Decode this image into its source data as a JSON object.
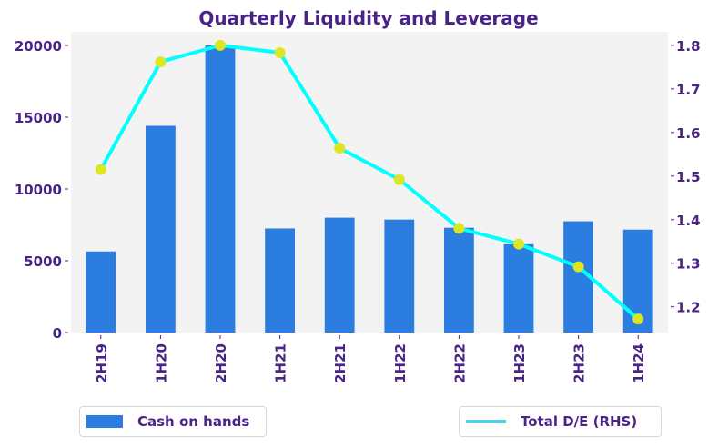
{
  "chart_data": {
    "type": "bar",
    "title": "Quarterly Liquidity and Leverage",
    "categories": [
      "2H19",
      "1H20",
      "2H20",
      "1H21",
      "2H21",
      "1H22",
      "2H22",
      "1H23",
      "2H23",
      "1H24"
    ],
    "series": [
      {
        "name": "Cash on hands",
        "type": "bar",
        "axis": "left",
        "color": "#2b7de0",
        "values": [
          5650,
          14400,
          20000,
          7250,
          8000,
          7870,
          7300,
          6150,
          7750,
          7170
        ]
      },
      {
        "name": "Total D/E (RHS)",
        "type": "line",
        "axis": "right",
        "color": "#00ffff",
        "marker_color": "#dde622",
        "legend_color": "#54d0e0",
        "values": [
          1.515,
          1.762,
          1.8,
          1.783,
          1.564,
          1.492,
          1.38,
          1.344,
          1.292,
          1.172
        ]
      }
    ],
    "xlabel": "",
    "ylabel": "",
    "y_left": {
      "lim": [
        0,
        20950
      ],
      "ticks": [
        0,
        5000,
        10000,
        15000,
        20000
      ],
      "tick_labels": [
        "0",
        "5000",
        "10000",
        "15000",
        "20000"
      ]
    },
    "y_right": {
      "lim": [
        1.141,
        1.831
      ],
      "ticks": [
        1.2,
        1.3,
        1.4,
        1.5,
        1.6,
        1.7,
        1.8
      ],
      "tick_labels": [
        "1.2",
        "1.3",
        "1.4",
        "1.5",
        "1.6",
        "1.7",
        "1.8"
      ]
    },
    "grid": false,
    "plot_background": "#f3f3f3",
    "text_color": "#4a2386",
    "legend": [
      {
        "label": "Cash on hands",
        "kind": "bar",
        "placement": "bottom-left"
      },
      {
        "label": "Total D/E (RHS)",
        "kind": "line",
        "placement": "bottom-right"
      }
    ]
  }
}
